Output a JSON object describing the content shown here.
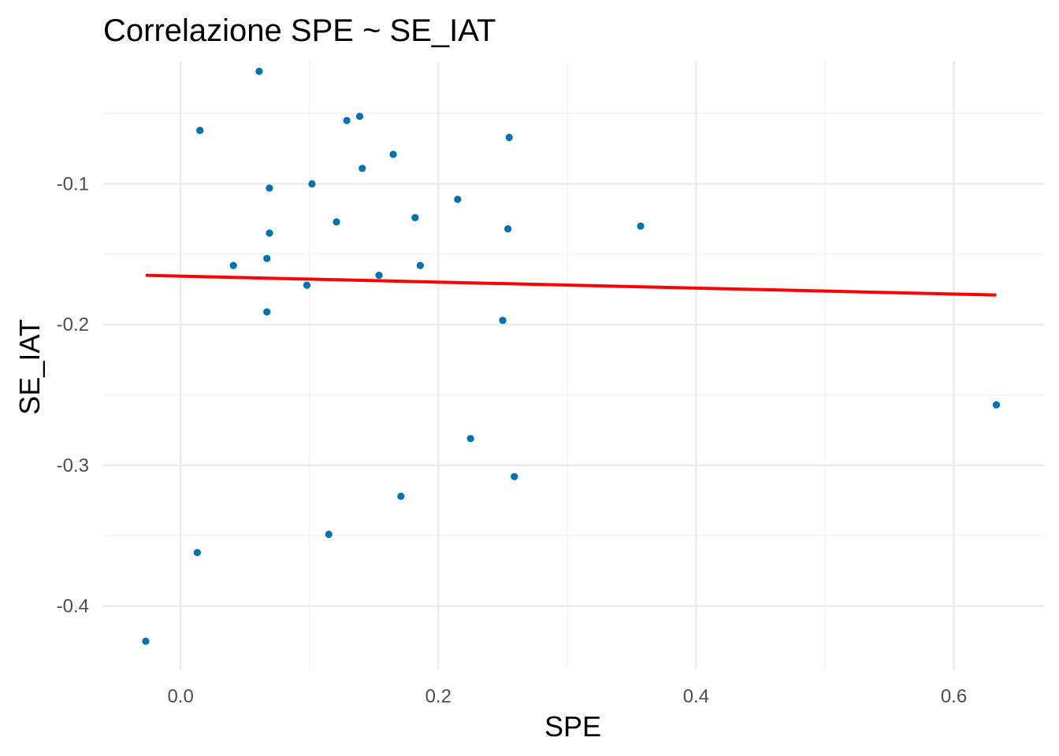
{
  "chart_data": {
    "type": "scatter",
    "title": "Correlazione SPE ~ SE_IAT",
    "xlabel": "SPE",
    "ylabel": "SE_IAT",
    "xlim": [
      -0.06,
      0.67
    ],
    "ylim": [
      -0.445,
      -0.013
    ],
    "x_ticks": [
      0.0,
      0.2,
      0.4,
      0.6
    ],
    "x_tick_labels": [
      "0.0",
      "0.2",
      "0.4",
      "0.6"
    ],
    "y_ticks": [
      -0.4,
      -0.3,
      -0.2,
      -0.1
    ],
    "y_tick_labels": [
      "-0.4",
      "-0.3",
      "-0.2",
      "-0.1"
    ],
    "grid": true,
    "legend": "none",
    "point_color": "#0072B2",
    "trend_color": "#FF0000",
    "points": [
      {
        "x": 0.061,
        "y": -0.02
      },
      {
        "x": 0.139,
        "y": -0.052
      },
      {
        "x": 0.129,
        "y": -0.055
      },
      {
        "x": 0.015,
        "y": -0.062
      },
      {
        "x": 0.255,
        "y": -0.067
      },
      {
        "x": 0.165,
        "y": -0.079
      },
      {
        "x": 0.141,
        "y": -0.089
      },
      {
        "x": 0.102,
        "y": -0.1
      },
      {
        "x": 0.069,
        "y": -0.103
      },
      {
        "x": 0.215,
        "y": -0.111
      },
      {
        "x": 0.182,
        "y": -0.124
      },
      {
        "x": 0.121,
        "y": -0.127
      },
      {
        "x": 0.357,
        "y": -0.13
      },
      {
        "x": 0.254,
        "y": -0.132
      },
      {
        "x": 0.069,
        "y": -0.135
      },
      {
        "x": 0.067,
        "y": -0.153
      },
      {
        "x": 0.041,
        "y": -0.158
      },
      {
        "x": 0.186,
        "y": -0.158
      },
      {
        "x": 0.154,
        "y": -0.165
      },
      {
        "x": 0.098,
        "y": -0.172
      },
      {
        "x": 0.067,
        "y": -0.191
      },
      {
        "x": 0.25,
        "y": -0.197
      },
      {
        "x": 0.633,
        "y": -0.257
      },
      {
        "x": 0.225,
        "y": -0.281
      },
      {
        "x": 0.259,
        "y": -0.308
      },
      {
        "x": 0.171,
        "y": -0.322
      },
      {
        "x": 0.115,
        "y": -0.349
      },
      {
        "x": 0.013,
        "y": -0.362
      },
      {
        "x": -0.027,
        "y": -0.425
      }
    ],
    "trend_line": {
      "x": [
        -0.027,
        0.633
      ],
      "y": [
        -0.165,
        -0.179
      ]
    }
  }
}
